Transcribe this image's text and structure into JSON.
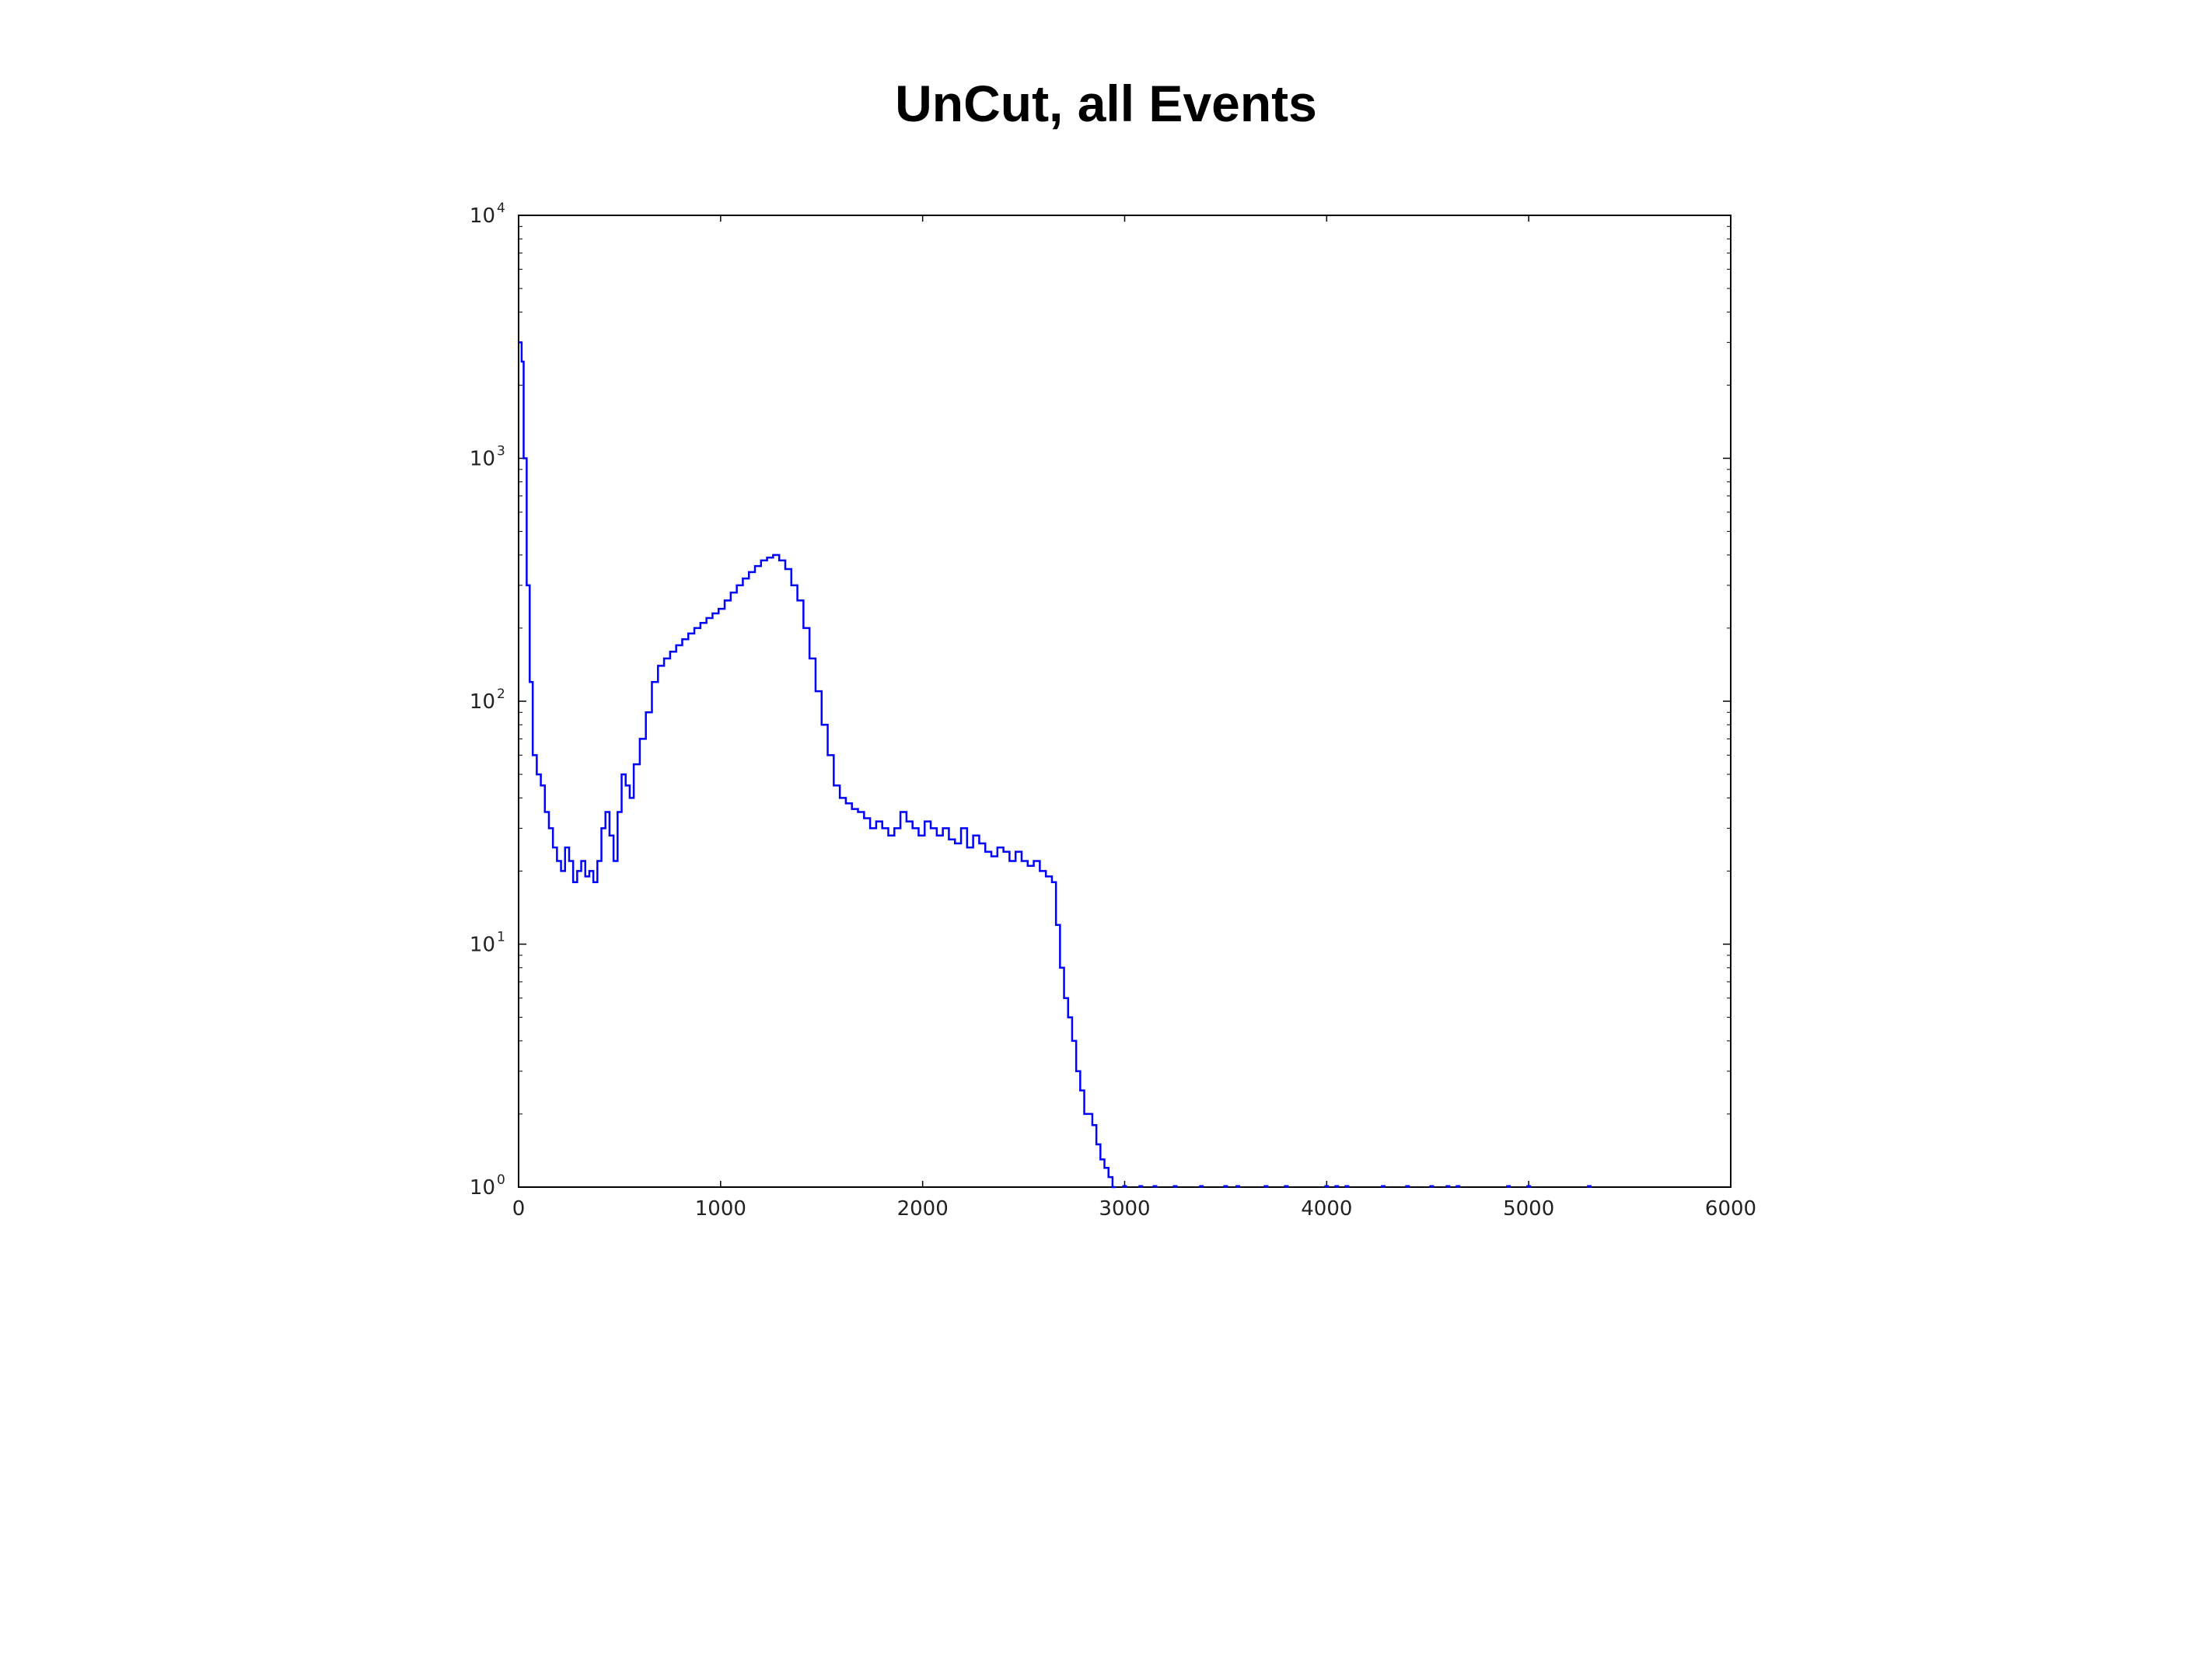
{
  "page": {
    "title": "UnCut, all Events"
  },
  "chart_data": {
    "type": "line",
    "title": "",
    "xlabel": "",
    "ylabel": "",
    "xlim": [
      0,
      6000
    ],
    "ylim": [
      1,
      10000
    ],
    "yscale": "log",
    "grid": false,
    "line_style": "steps",
    "color": "#0000ff",
    "x_ticks": [
      "0",
      "1000",
      "2000",
      "3000",
      "4000",
      "5000",
      "6000"
    ],
    "y_ticks": [
      {
        "base": "10",
        "exp": "0"
      },
      {
        "base": "10",
        "exp": "1"
      },
      {
        "base": "10",
        "exp": "2"
      },
      {
        "base": "10",
        "exp": "3"
      },
      {
        "base": "10",
        "exp": "4"
      }
    ],
    "series": [
      {
        "x": [
          0,
          15,
          25,
          40,
          55,
          70,
          90,
          110,
          130,
          150,
          170,
          190,
          210,
          230,
          250,
          270,
          290,
          310,
          330,
          350,
          370,
          390,
          410,
          430,
          450,
          470,
          490,
          510,
          530,
          550,
          570,
          600,
          630,
          660,
          690,
          720,
          750,
          780,
          810,
          840,
          870,
          900,
          930,
          960,
          990,
          1020,
          1050,
          1080,
          1110,
          1140,
          1170,
          1200,
          1230,
          1260,
          1290,
          1320,
          1350,
          1380,
          1410,
          1440,
          1470,
          1500,
          1530,
          1560,
          1590,
          1620,
          1650,
          1680,
          1710,
          1740,
          1770,
          1800,
          1830,
          1860,
          1890,
          1920,
          1950,
          1980,
          2010,
          2040,
          2070,
          2100,
          2130,
          2160,
          2190,
          2220,
          2250,
          2280,
          2310,
          2340,
          2370,
          2400,
          2430,
          2460,
          2490,
          2520,
          2550,
          2580,
          2610,
          2640,
          2660,
          2680,
          2700,
          2720,
          2740,
          2760,
          2780,
          2800,
          2820,
          2840,
          2860,
          2880,
          2900,
          2920,
          2940
        ],
        "y": [
          3000,
          2500,
          1000,
          300,
          120,
          60,
          50,
          45,
          35,
          30,
          25,
          22,
          20,
          25,
          22,
          18,
          20,
          22,
          19,
          20,
          18,
          22,
          30,
          35,
          28,
          22,
          35,
          50,
          45,
          40,
          55,
          70,
          90,
          120,
          140,
          150,
          160,
          170,
          180,
          190,
          200,
          210,
          220,
          230,
          240,
          260,
          280,
          300,
          320,
          340,
          360,
          380,
          390,
          400,
          380,
          350,
          300,
          260,
          200,
          150,
          110,
          80,
          60,
          45,
          40,
          38,
          36,
          35,
          33,
          30,
          32,
          30,
          28,
          30,
          35,
          32,
          30,
          28,
          32,
          30,
          28,
          30,
          27,
          26,
          30,
          25,
          28,
          26,
          24,
          23,
          25,
          24,
          22,
          24,
          22,
          21,
          22,
          20,
          19,
          18,
          12,
          8,
          6,
          5,
          4,
          3,
          2.5,
          2,
          2,
          1.8,
          1.5,
          1.3,
          1.2,
          1.1,
          1
        ]
      }
    ],
    "sparse_points_x": [
      3000,
      3080,
      3150,
      3250,
      3380,
      3500,
      3560,
      3700,
      3800,
      4000,
      4050,
      4100,
      4280,
      4400,
      4520,
      4600,
      4650,
      4900,
      5000,
      5300
    ]
  }
}
